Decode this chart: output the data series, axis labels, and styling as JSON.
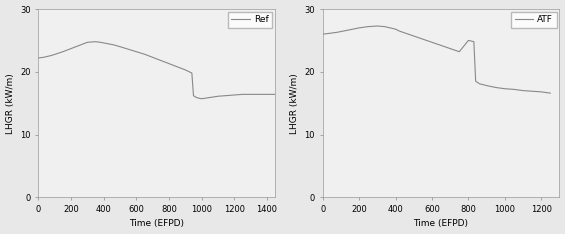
{
  "ref": {
    "x": [
      0,
      30,
      80,
      150,
      200,
      250,
      300,
      350,
      380,
      420,
      460,
      500,
      550,
      600,
      650,
      700,
      750,
      800,
      850,
      900,
      940,
      950,
      960,
      970,
      980,
      1000,
      1050,
      1100,
      1150,
      1200,
      1250,
      1300,
      1350,
      1400,
      1450
    ],
    "y": [
      22.2,
      22.3,
      22.6,
      23.2,
      23.7,
      24.2,
      24.7,
      24.8,
      24.7,
      24.5,
      24.3,
      24.0,
      23.6,
      23.2,
      22.8,
      22.3,
      21.8,
      21.3,
      20.8,
      20.3,
      19.8,
      16.2,
      16.0,
      15.9,
      15.8,
      15.7,
      15.9,
      16.1,
      16.2,
      16.3,
      16.4,
      16.4,
      16.4,
      16.4,
      16.4
    ],
    "legend": "Ref"
  },
  "atf": {
    "x": [
      0,
      30,
      80,
      150,
      200,
      250,
      300,
      340,
      370,
      400,
      420,
      450,
      500,
      550,
      600,
      650,
      700,
      750,
      800,
      830,
      840,
      850,
      860,
      900,
      950,
      1000,
      1050,
      1100,
      1150,
      1200,
      1250
    ],
    "y": [
      26.0,
      26.1,
      26.3,
      26.7,
      27.0,
      27.2,
      27.3,
      27.2,
      27.0,
      26.8,
      26.5,
      26.2,
      25.7,
      25.2,
      24.7,
      24.2,
      23.7,
      23.2,
      25.0,
      24.8,
      18.5,
      18.3,
      18.1,
      17.8,
      17.5,
      17.3,
      17.2,
      17.0,
      16.9,
      16.8,
      16.6
    ],
    "legend": "ATF"
  },
  "ylabel": "LHGR (kW/m)",
  "xlabel": "Time (EFPD)",
  "ylim": [
    0,
    30
  ],
  "ref_xlim": [
    0,
    1450
  ],
  "atf_xlim": [
    0,
    1300
  ],
  "ref_xticks": [
    0,
    200,
    400,
    600,
    800,
    1000,
    1200,
    1400
  ],
  "atf_xticks": [
    0,
    200,
    400,
    600,
    800,
    1000,
    1200
  ],
  "yticks": [
    0,
    10,
    20,
    30
  ],
  "line_color": "#888888",
  "background_color": "#e8e8e8",
  "axes_bg": "#f0f0f0"
}
